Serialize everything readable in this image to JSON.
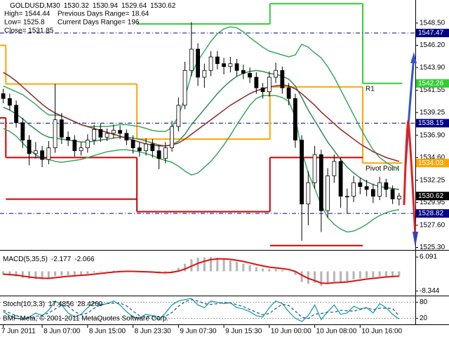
{
  "chart_data": [
    {
      "type": "candlestick",
      "title": "GOLDUSD,M30",
      "info": [
        [
          "High= 1544.44",
          "Previous Days Range= 18.64"
        ],
        [
          "Low= 1525.8",
          "Current Days Range= 196"
        ],
        [
          "Close= 1531.85"
        ]
      ],
      "ylim": [
        1525.12,
        1550.88
      ],
      "yticks": [
        {
          "value": 1548.5,
          "label": "1548.50"
        },
        {
          "value": 1546.2,
          "label": "1546.20"
        },
        {
          "value": 1543.9,
          "label": "1543.90"
        },
        1541.55,
        1539.25,
        {
          "value": 1536.9,
          "label": "1536.90"
        },
        {
          "value": 1534.6,
          "label": "1534.60"
        },
        1532.25,
        1529.95,
        {
          "value": 1527.6,
          "label": "1527.60"
        },
        {
          "value": 1525.3,
          "label": "1525.30"
        }
      ],
      "categories": [
        "7 Jun 2011",
        null,
        null,
        null,
        null,
        null,
        "8 Jun 07:00",
        null,
        null,
        null,
        null,
        null,
        null,
        "8 Jun 15:00",
        null,
        null,
        null,
        null,
        null,
        null,
        "8 Jun 23:30",
        null,
        null,
        null,
        null,
        null,
        null,
        "9 Jun 07:30",
        null,
        null,
        null,
        null,
        null,
        null,
        "9 Jun 15:30",
        null,
        null,
        null,
        null,
        null,
        null,
        "10 Jun 00:00",
        null,
        null,
        null,
        null,
        null,
        null,
        "10 Jun 08:00",
        null,
        null,
        null,
        null,
        null,
        null,
        "10 Jun 16:00",
        null,
        null,
        null,
        null,
        null,
        null
      ],
      "ohlc": [
        [
          1541.2,
          1541.7,
          1540.2,
          1540.7
        ],
        [
          1540.7,
          1541.2,
          1539.5,
          1540.0
        ],
        [
          1540.0,
          1540.5,
          1537.7,
          1538.2
        ],
        [
          1538.2,
          1538.7,
          1535.6,
          1536.4
        ],
        [
          1536.4,
          1536.9,
          1533.8,
          1535.0
        ],
        [
          1535.0,
          1536.2,
          1534.5,
          1535.3
        ],
        [
          1535.3,
          1535.8,
          1533.6,
          1534.4
        ],
        [
          1534.4,
          1536.3,
          1533.9,
          1535.6
        ],
        [
          1535.6,
          1542.2,
          1535.1,
          1538.5
        ],
        [
          1538.5,
          1539.2,
          1536.0,
          1536.7
        ],
        [
          1536.7,
          1537.3,
          1535.8,
          1536.4
        ],
        [
          1536.4,
          1536.9,
          1534.7,
          1535.3
        ],
        [
          1535.3,
          1536.2,
          1534.8,
          1535.6
        ],
        [
          1535.6,
          1537.0,
          1535.1,
          1536.4
        ],
        [
          1536.4,
          1538.0,
          1535.9,
          1537.5
        ],
        [
          1537.5,
          1538.1,
          1536.2,
          1536.7
        ],
        [
          1536.7,
          1537.6,
          1536.3,
          1537.1
        ],
        [
          1537.1,
          1538.0,
          1536.6,
          1537.4
        ],
        [
          1537.4,
          1537.9,
          1536.5,
          1537.1
        ],
        [
          1537.1,
          1537.5,
          1535.9,
          1536.4
        ],
        [
          1536.4,
          1536.9,
          1535.0,
          1535.6
        ],
        [
          1535.6,
          1536.2,
          1534.7,
          1535.3
        ],
        [
          1535.3,
          1536.6,
          1534.8,
          1536.0
        ],
        [
          1536.0,
          1536.5,
          1534.6,
          1535.3
        ],
        [
          1535.3,
          1535.9,
          1533.4,
          1534.5
        ],
        [
          1534.5,
          1536.2,
          1534.0,
          1535.6
        ],
        [
          1535.6,
          1538.4,
          1535.2,
          1537.8
        ],
        [
          1537.8,
          1540.8,
          1537.3,
          1540.0
        ],
        [
          1540.0,
          1544.5,
          1539.6,
          1543.6
        ],
        [
          1543.6,
          1548.6,
          1543.0,
          1545.8
        ],
        [
          1545.8,
          1546.4,
          1542.0,
          1542.9
        ],
        [
          1542.9,
          1544.3,
          1541.8,
          1543.6
        ],
        [
          1543.6,
          1545.6,
          1543.0,
          1545.0
        ],
        [
          1545.0,
          1545.6,
          1543.7,
          1544.3
        ],
        [
          1544.3,
          1544.9,
          1543.2,
          1544.0
        ],
        [
          1544.0,
          1545.0,
          1543.4,
          1544.3
        ],
        [
          1544.3,
          1544.8,
          1543.0,
          1543.6
        ],
        [
          1543.6,
          1544.2,
          1542.7,
          1543.3
        ],
        [
          1543.3,
          1543.9,
          1542.3,
          1542.9
        ],
        [
          1542.9,
          1543.4,
          1541.2,
          1541.8
        ],
        [
          1541.8,
          1542.3,
          1540.7,
          1541.4
        ],
        [
          1541.4,
          1543.5,
          1540.9,
          1542.9
        ],
        [
          1542.9,
          1544.4,
          1542.3,
          1543.6
        ],
        [
          1543.6,
          1544.0,
          1541.2,
          1541.8
        ],
        [
          1541.8,
          1542.3,
          1540.0,
          1540.7
        ],
        [
          1540.7,
          1541.2,
          1535.6,
          1536.4
        ],
        [
          1536.4,
          1536.9,
          1526.0,
          1529.8
        ],
        [
          1529.8,
          1533.2,
          1527.6,
          1532.0
        ],
        [
          1532.0,
          1535.8,
          1531.4,
          1534.9
        ],
        [
          1534.9,
          1535.4,
          1526.9,
          1529.1
        ],
        [
          1529.1,
          1533.5,
          1528.4,
          1532.7
        ],
        [
          1532.7,
          1534.9,
          1532.0,
          1534.2
        ],
        [
          1534.2,
          1534.6,
          1529.4,
          1530.6
        ],
        [
          1530.6,
          1531.4,
          1528.8,
          1530.6
        ],
        [
          1530.6,
          1532.7,
          1530.0,
          1532.0
        ],
        [
          1532.0,
          1532.5,
          1530.8,
          1531.6
        ],
        [
          1531.6,
          1532.3,
          1530.6,
          1531.3
        ],
        [
          1531.3,
          1531.9,
          1529.9,
          1530.6
        ],
        [
          1530.6,
          1532.6,
          1530.2,
          1532.0
        ],
        [
          1532.0,
          1532.4,
          1530.5,
          1531.3
        ],
        [
          1531.3,
          1531.7,
          1529.8,
          1530.32
        ],
        [
          1530.32,
          1530.94,
          1529.64,
          1530.62
        ]
      ],
      "lines": [
        {
          "color": "#3aa860",
          "values": [
            1542.0,
            1541.7,
            1541.4,
            1541.1,
            1540.6,
            1540.1,
            1539.5,
            1539.0,
            1539.0,
            1538.9,
            1538.6,
            1538.3,
            1538.0,
            1537.8,
            1537.8,
            1537.8,
            1537.8,
            1537.9,
            1538.0,
            1538.0,
            1537.9,
            1537.8,
            1537.6,
            1537.4,
            1537.3,
            1537.3,
            1537.7,
            1538.9,
            1540.8,
            1543.2,
            1544.6,
            1545.6,
            1546.6,
            1547.4,
            1547.9,
            1548.1,
            1548.0,
            1547.6,
            1547.0,
            1546.5,
            1546.0,
            1545.6,
            1545.4,
            1545.2,
            1545.0,
            1545.2,
            1546.3,
            1546.0,
            1545.4,
            1544.9,
            1544.0,
            1542.9,
            1541.6,
            1540.3,
            1539.0,
            1537.7,
            1536.5,
            1535.4,
            1534.6,
            1534.1,
            1533.7,
            1533.4
          ]
        },
        {
          "color": "#2e8b57",
          "values": [
            1539.8,
            1539.5,
            1539.1,
            1538.6,
            1538.0,
            1537.5,
            1537.0,
            1536.7,
            1536.6,
            1536.5,
            1536.4,
            1536.3,
            1536.2,
            1536.2,
            1536.3,
            1536.4,
            1536.5,
            1536.6,
            1536.7,
            1536.7,
            1536.6,
            1536.5,
            1536.3,
            1536.1,
            1535.9,
            1535.8,
            1535.9,
            1536.3,
            1537.0,
            1538.0,
            1538.8,
            1539.6,
            1540.4,
            1541.2,
            1541.9,
            1542.5,
            1543.0,
            1543.3,
            1543.5,
            1543.6,
            1543.5,
            1543.3,
            1543.2,
            1543.0,
            1542.7,
            1542.0,
            1540.8,
            1539.5,
            1538.4,
            1537.3,
            1536.2,
            1535.3,
            1534.4,
            1533.6,
            1533.0,
            1532.5,
            1532.1,
            1531.8,
            1531.6,
            1531.5,
            1531.4,
            1531.3
          ]
        },
        {
          "color": "#3aa860",
          "values": [
            1537.6,
            1537.3,
            1536.8,
            1536.1,
            1535.4,
            1534.9,
            1534.5,
            1534.4,
            1534.2,
            1534.1,
            1534.2,
            1534.3,
            1534.4,
            1534.6,
            1534.8,
            1535.0,
            1535.2,
            1535.3,
            1535.4,
            1535.4,
            1535.3,
            1535.2,
            1535.0,
            1534.8,
            1534.5,
            1534.3,
            1534.1,
            1533.7,
            1533.2,
            1532.8,
            1533.0,
            1533.6,
            1534.2,
            1535.0,
            1535.9,
            1536.9,
            1538.0,
            1539.0,
            1540.0,
            1540.7,
            1541.0,
            1541.0,
            1541.0,
            1540.8,
            1540.4,
            1538.8,
            1535.3,
            1533.0,
            1531.4,
            1529.7,
            1528.4,
            1527.7,
            1527.2,
            1526.9,
            1527.0,
            1527.3,
            1527.7,
            1528.2,
            1528.6,
            1528.9,
            1529.1,
            1529.2
          ]
        },
        {
          "color": "#8b2a2a",
          "values": [
            1543.4,
            1543.0,
            1542.5,
            1541.9,
            1541.3,
            1540.7,
            1540.1,
            1539.6,
            1539.2,
            1538.9,
            1538.6,
            1538.3,
            1538.0,
            1537.8,
            1537.6,
            1537.4,
            1537.2,
            1537.0,
            1536.8,
            1536.6,
            1536.4,
            1536.2,
            1536.0,
            1535.9,
            1535.8,
            1535.8,
            1535.9,
            1536.1,
            1536.5,
            1537.0,
            1537.5,
            1538.0,
            1538.5,
            1539.0,
            1539.5,
            1540.0,
            1540.4,
            1540.8,
            1541.2,
            1541.5,
            1541.7,
            1541.9,
            1542.0,
            1542.1,
            1542.0,
            1541.7,
            1541.2,
            1540.6,
            1540.0,
            1539.3,
            1538.7,
            1538.1,
            1537.5,
            1537.0,
            1536.5,
            1536.0,
            1535.6,
            1535.2,
            1534.9,
            1534.6,
            1534.4,
            1534.2
          ]
        }
      ],
      "levels": [
        {
          "color": "#32cd32",
          "label": "R1",
          "segments": [
            [
              20.6,
              41.1,
              1548.4
            ],
            [
              41.1,
              55.4,
              1550.5
            ],
            [
              55.4,
              61.5,
              1542.26
            ]
          ]
        },
        {
          "color": "#ffa500",
          "label": "Pivot Point",
          "segments": [
            [
              -0.5,
              0.4,
              1546.2
            ],
            [
              0.4,
              20.6,
              1542.2
            ],
            [
              20.6,
              41.1,
              1536.5
            ],
            [
              41.1,
              55.4,
              1541.9
            ],
            [
              55.4,
              61.5,
              1534.03
            ]
          ]
        },
        {
          "color": "#cc0000",
          "segments": [
            [
              -0.5,
              0.4,
              1538.7
            ],
            [
              0.4,
              20.6,
              1534.6
            ],
            [
              20.6,
              41.1,
              1529.0
            ],
            [
              41.1,
              55.4,
              1534.6
            ]
          ]
        },
        {
          "color": "#cc0000",
          "segments": [
            [
              0.4,
              20.6,
              1530.3
            ],
            [
              41.1,
              55.4,
              1525.5
            ]
          ]
        }
      ],
      "hlines": [
        {
          "value": 1547.47,
          "color": "#000080"
        },
        {
          "value": 1538.15,
          "color": "#000080"
        },
        {
          "value": 1528.82,
          "color": "#000080"
        }
      ]
    },
    {
      "type": "macd",
      "title": "MACD(5,35,5)",
      "ylim": [
        -10,
        8.5
      ],
      "yticks": [
        6.091,
        -8.344
      ],
      "histogram": {
        "color": "#b4b4b4",
        "values": [
          -1.5,
          -1.8,
          -2.2,
          -2.8,
          -3.2,
          -3.3,
          -3.4,
          -3.0,
          -2.0,
          -1.8,
          -1.6,
          -1.6,
          -1.4,
          -1.0,
          -0.5,
          -0.3,
          0.0,
          0.2,
          0.3,
          0.2,
          -0.1,
          -0.4,
          -0.4,
          -0.6,
          -0.9,
          -0.6,
          0.3,
          1.5,
          3.2,
          5.2,
          5.8,
          5.9,
          6.1,
          5.8,
          5.2,
          4.6,
          4.0,
          3.3,
          2.6,
          1.8,
          1.2,
          1.0,
          1.0,
          0.6,
          0.0,
          -1.5,
          -4.5,
          -5.3,
          -5.0,
          -6.2,
          -5.4,
          -4.3,
          -4.6,
          -4.2,
          -3.4,
          -3.0,
          -2.8,
          -2.6,
          -2.2,
          -2.2,
          -2.2,
          -2.177
        ]
      },
      "signal": {
        "color": "#dd1111",
        "values": [
          -1.2,
          -1.4,
          -1.6,
          -2.0,
          -2.4,
          -2.7,
          -2.9,
          -3.0,
          -2.7,
          -2.4,
          -2.1,
          -1.9,
          -1.7,
          -1.5,
          -1.2,
          -0.9,
          -0.6,
          -0.3,
          -0.1,
          0.0,
          0.0,
          -0.1,
          -0.2,
          -0.3,
          -0.5,
          -0.6,
          -0.4,
          0.1,
          1.0,
          2.2,
          3.4,
          4.3,
          5.0,
          5.3,
          5.3,
          5.1,
          4.7,
          4.2,
          3.6,
          2.9,
          2.3,
          1.8,
          1.5,
          1.2,
          0.8,
          0.0,
          -1.6,
          -3.0,
          -3.9,
          -5.0,
          -5.1,
          -4.8,
          -4.7,
          -4.5,
          -4.1,
          -3.7,
          -3.3,
          -3.0,
          -2.7,
          -2.4,
          -2.2,
          -2.066
        ]
      }
    },
    {
      "type": "stochastic",
      "title": "Stoch(10,3,3)",
      "footer": "BMF-Meta, © 2001-2011 MetaQuotes Software Corp.",
      "ylim": [
        0,
        100
      ],
      "yticks": [
        80,
        20
      ],
      "series": [
        {
          "color": "#20a0a0",
          "dash": false,
          "values": [
            45,
            30,
            20,
            15,
            25,
            40,
            30,
            50,
            85,
            70,
            40,
            25,
            35,
            60,
            80,
            70,
            75,
            85,
            70,
            45,
            25,
            20,
            35,
            30,
            15,
            40,
            70,
            85,
            90,
            95,
            70,
            60,
            85,
            80,
            75,
            78,
            60,
            55,
            45,
            30,
            25,
            60,
            85,
            75,
            45,
            20,
            8,
            30,
            70,
            15,
            45,
            70,
            35,
            40,
            65,
            55,
            60,
            40,
            75,
            60,
            35,
            17.4856
          ]
        },
        {
          "color": "#2060a0",
          "dash": true,
          "values": [
            50,
            40,
            30,
            22,
            20,
            27,
            32,
            40,
            55,
            68,
            65,
            45,
            33,
            40,
            58,
            70,
            75,
            77,
            77,
            67,
            47,
            30,
            27,
            28,
            27,
            28,
            42,
            65,
            82,
            90,
            85,
            75,
            72,
            75,
            80,
            78,
            71,
            64,
            53,
            43,
            33,
            38,
            57,
            73,
            68,
            47,
            24,
            19,
            36,
            38,
            43,
            43,
            50,
            48,
            47,
            53,
            60,
            52,
            58,
            58,
            57,
            28.4209
          ]
        }
      ]
    }
  ]
}
